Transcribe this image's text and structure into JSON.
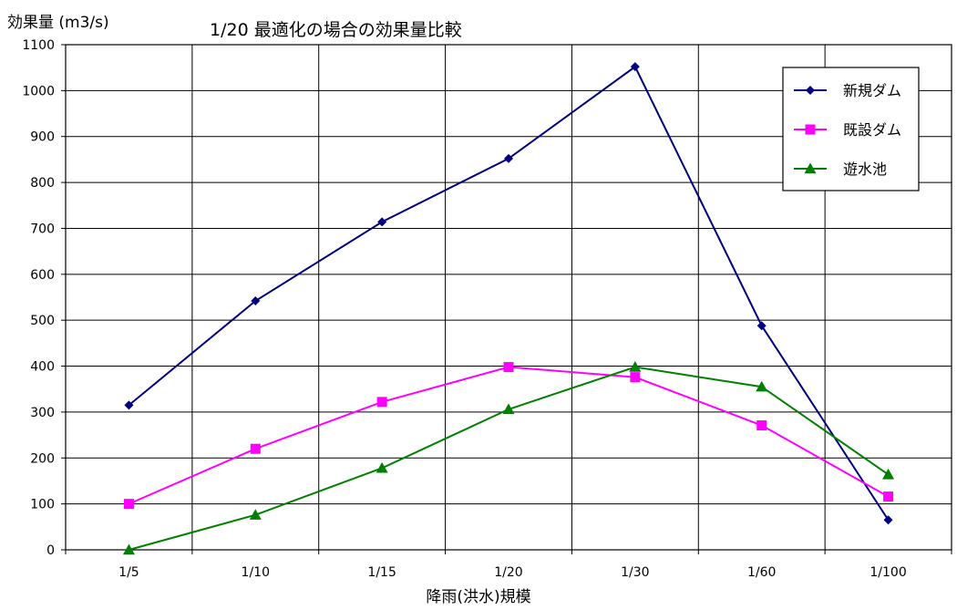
{
  "chart_data": {
    "type": "line",
    "title": "1/20 最適化の場合の効果量比較",
    "ylabel": "効果量 (m3/s)",
    "xlabel": "降雨(洪水)規模",
    "categories": [
      "1/5",
      "1/10",
      "1/15",
      "1/20",
      "1/30",
      "1/60",
      "1/100"
    ],
    "ylim": [
      0,
      1100
    ],
    "yticks": [
      0,
      100,
      200,
      300,
      400,
      500,
      600,
      700,
      800,
      900,
      1000,
      1100
    ],
    "grid": true,
    "legend_position": "top-right",
    "series": [
      {
        "name": "新規ダム",
        "color": "#000080",
        "marker": "diamond",
        "values": [
          315,
          542,
          714,
          852,
          1052,
          488,
          65
        ]
      },
      {
        "name": "既設ダム",
        "color": "#ff00ff",
        "marker": "square",
        "values": [
          100,
          220,
          322,
          398,
          376,
          271,
          116
        ]
      },
      {
        "name": "遊水池",
        "color": "#008000",
        "marker": "triangle",
        "values": [
          0,
          76,
          178,
          306,
          398,
          355,
          164
        ]
      }
    ]
  }
}
